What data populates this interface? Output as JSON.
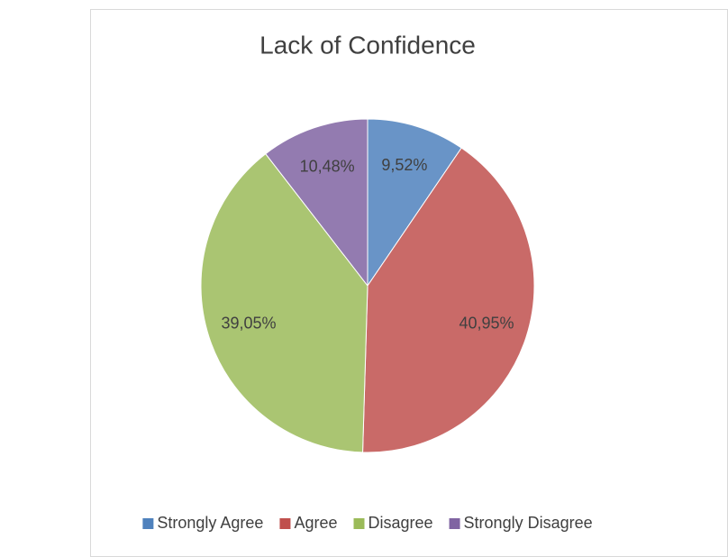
{
  "chart_data": {
    "type": "pie",
    "title": "Lack of Confidence",
    "categories": [
      "Strongly Agree",
      "Agree",
      "Disagree",
      "Strongly Disagree"
    ],
    "values": [
      9.52,
      40.95,
      39.05,
      10.48
    ],
    "value_labels": [
      "9,52%",
      "40,95%",
      "39,05%",
      "10,48%"
    ],
    "colors": [
      "#4f81bd",
      "#c0504d",
      "#9bbb59",
      "#8064a2"
    ],
    "legend": "bottom"
  }
}
